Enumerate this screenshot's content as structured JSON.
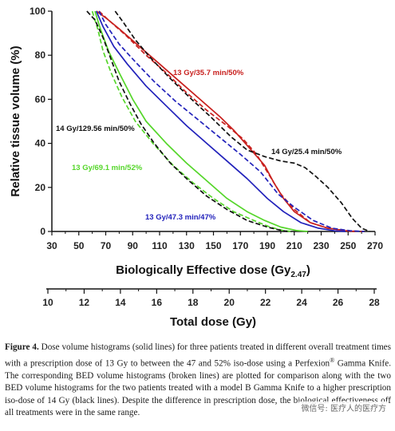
{
  "chart_data": {
    "type": "line",
    "xlabel_main": "Biologically Effective dose (Gy",
    "xlabel_sub": "2.47",
    "xlabel_close": ")",
    "ylabel": "Relative tissue volume (%)",
    "xlim": [
      30,
      270
    ],
    "ylim": [
      0,
      100
    ],
    "xticks": [
      "30",
      "50",
      "70",
      "90",
      "110",
      "130",
      "150",
      "170",
      "190",
      "210",
      "230",
      "250",
      "270"
    ],
    "yticks": [
      "0",
      "20",
      "40",
      "60",
      "80",
      "100"
    ],
    "secondary_axis": {
      "label": "Total dose (Gy)",
      "range": [
        10,
        28
      ],
      "ticks": [
        "10",
        "12",
        "14",
        "16",
        "18",
        "20",
        "22",
        "24",
        "26",
        "28"
      ]
    },
    "series": [
      {
        "name": "13 Gy/35.7 min/50%",
        "color": "#c8201e",
        "style": "solid",
        "points": [
          [
            63,
            100
          ],
          [
            70,
            97
          ],
          [
            80,
            92
          ],
          [
            95,
            84
          ],
          [
            110,
            76
          ],
          [
            125,
            68
          ],
          [
            140,
            60
          ],
          [
            155,
            52
          ],
          [
            165,
            46
          ],
          [
            178,
            37
          ],
          [
            188,
            30
          ],
          [
            195,
            22
          ],
          [
            202,
            15
          ],
          [
            210,
            9
          ],
          [
            222,
            4
          ],
          [
            235,
            1.5
          ],
          [
            248,
            0.3
          ],
          [
            255,
            0
          ]
        ]
      },
      {
        "name": "13 Gy/35.7 min/50% BED",
        "color": "#c8201e",
        "style": "dash",
        "points": [
          [
            65,
            100
          ],
          [
            72,
            96
          ],
          [
            85,
            89
          ],
          [
            100,
            80
          ],
          [
            115,
            72
          ],
          [
            130,
            63
          ],
          [
            145,
            55
          ],
          [
            160,
            48
          ],
          [
            172,
            42
          ],
          [
            182,
            35
          ],
          [
            192,
            25
          ],
          [
            200,
            17
          ],
          [
            210,
            10
          ],
          [
            222,
            4
          ],
          [
            235,
            1.5
          ],
          [
            250,
            0.3
          ],
          [
            262,
            0
          ]
        ]
      },
      {
        "name": "13 Gy/47.3 min/47%",
        "color": "#2222bb",
        "style": "solid",
        "points": [
          [
            63,
            100
          ],
          [
            68,
            93
          ],
          [
            76,
            84
          ],
          [
            86,
            76
          ],
          [
            100,
            66
          ],
          [
            115,
            57
          ],
          [
            130,
            48
          ],
          [
            145,
            40
          ],
          [
            160,
            32
          ],
          [
            175,
            24
          ],
          [
            190,
            15
          ],
          [
            202,
            9
          ],
          [
            215,
            4
          ],
          [
            228,
            1.5
          ],
          [
            240,
            0.3
          ],
          [
            248,
            0
          ]
        ]
      },
      {
        "name": "13 Gy/47.3 min/47% BED",
        "color": "#2222bb",
        "style": "dash",
        "points": [
          [
            65,
            100
          ],
          [
            70,
            94
          ],
          [
            80,
            85
          ],
          [
            92,
            77
          ],
          [
            106,
            68
          ],
          [
            122,
            59
          ],
          [
            138,
            51
          ],
          [
            154,
            43
          ],
          [
            170,
            35
          ],
          [
            185,
            27
          ],
          [
            198,
            17
          ],
          [
            210,
            11
          ],
          [
            224,
            5
          ],
          [
            238,
            1.5
          ],
          [
            252,
            0.3
          ],
          [
            262,
            0
          ]
        ]
      },
      {
        "name": "13 Gy/69.1 min/52%",
        "color": "#55d62a",
        "style": "solid",
        "points": [
          [
            62,
            100
          ],
          [
            66,
            92
          ],
          [
            72,
            82
          ],
          [
            80,
            72
          ],
          [
            90,
            60
          ],
          [
            100,
            50
          ],
          [
            115,
            40
          ],
          [
            130,
            31
          ],
          [
            145,
            23
          ],
          [
            160,
            15
          ],
          [
            175,
            9
          ],
          [
            188,
            5
          ],
          [
            200,
            2
          ],
          [
            212,
            0.4
          ],
          [
            220,
            0
          ]
        ]
      },
      {
        "name": "13 Gy/69.1 min/52% BED",
        "color": "#55d62a",
        "style": "dash",
        "points": [
          [
            60,
            100
          ],
          [
            64,
            92
          ],
          [
            68,
            82
          ],
          [
            74,
            72
          ],
          [
            82,
            61
          ],
          [
            92,
            50
          ],
          [
            105,
            40
          ],
          [
            120,
            30
          ],
          [
            135,
            22
          ],
          [
            150,
            15
          ],
          [
            165,
            9
          ],
          [
            180,
            5
          ],
          [
            192,
            2
          ],
          [
            202,
            0.4
          ],
          [
            208,
            0
          ]
        ]
      },
      {
        "name": "14 Gy/129.56 min/50%",
        "color": "#111111",
        "style": "dash",
        "points": [
          [
            56,
            100
          ],
          [
            62,
            96
          ],
          [
            68,
            88
          ],
          [
            74,
            78
          ],
          [
            80,
            68
          ],
          [
            88,
            58
          ],
          [
            96,
            49
          ],
          [
            106,
            40
          ],
          [
            118,
            31
          ],
          [
            130,
            24
          ],
          [
            145,
            16
          ],
          [
            160,
            10
          ],
          [
            175,
            5
          ],
          [
            190,
            2
          ],
          [
            200,
            0.5
          ],
          [
            205,
            0
          ]
        ]
      },
      {
        "name": "14 Gy/25.4 min/50%",
        "color": "#111111",
        "style": "dash",
        "points": [
          [
            77,
            100
          ],
          [
            83,
            95
          ],
          [
            92,
            87
          ],
          [
            103,
            79
          ],
          [
            117,
            70
          ],
          [
            132,
            61
          ],
          [
            148,
            52
          ],
          [
            163,
            43
          ],
          [
            175,
            37
          ],
          [
            188,
            34
          ],
          [
            200,
            32
          ],
          [
            210,
            31
          ],
          [
            218,
            29
          ],
          [
            226,
            25
          ],
          [
            235,
            20
          ],
          [
            245,
            13
          ],
          [
            253,
            6
          ],
          [
            260,
            1.5
          ],
          [
            266,
            0
          ]
        ]
      }
    ],
    "annotations": [
      {
        "text": "13 Gy/35.7 min/50%",
        "color": "#c8201e"
      },
      {
        "text": "14 Gy/129.56 min/50%",
        "color": "#111111"
      },
      {
        "text": "14 Gy/25.4 min/50%",
        "color": "#111111"
      },
      {
        "text": "13 Gy/69.1 min/52%",
        "color": "#55d62a"
      },
      {
        "text": "13 Gy/47.3 min/47%",
        "color": "#2222bb"
      }
    ]
  },
  "caption": {
    "label": "Figure 4.",
    "part1": " Dose volume histograms (solid lines) for three patients treated in different overall treatment times with a prescription dose of 13 Gy to between the 47 and 52% iso-dose using a Perfexion",
    "reg": "®",
    "part2": " Gamma Knife. The corresponding BED volume histograms (broken lines) are plotted for comparison along with the two BED volume histograms for the two patients treated with a model B Gamma Knife to a higher prescription iso-dose of 14 Gy (black lines). Despite the difference in prescription dose, the biological effectiveness off all treatments were in the same range."
  },
  "watermark": "微信号: 医疗人的医疗方"
}
